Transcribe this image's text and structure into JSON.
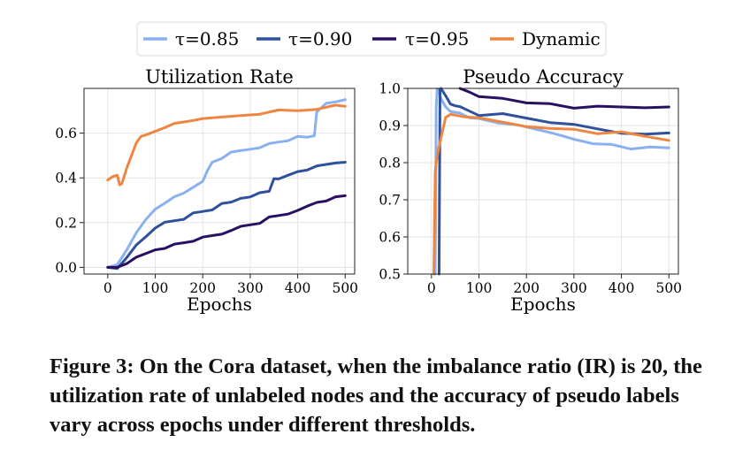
{
  "legend": {
    "entries": [
      {
        "label": "τ=0.85",
        "color": "#8AB0F0"
      },
      {
        "label": "τ=0.90",
        "color": "#30509C"
      },
      {
        "label": "τ=0.95",
        "color": "#2A0F63"
      },
      {
        "label": "Dynamic",
        "color": "#EE8642"
      }
    ]
  },
  "chart_data": [
    {
      "type": "line",
      "title": "Utilization Rate",
      "xlabel": "Epochs",
      "ylabel": "",
      "xlim": [
        -50,
        520
      ],
      "ylim": [
        -0.03,
        0.8
      ],
      "xticks": [
        0,
        100,
        200,
        300,
        400,
        500
      ],
      "yticks": [
        0.0,
        0.2,
        0.4,
        0.6
      ],
      "ytick_labels": [
        "0.0",
        "0.2",
        "0.4",
        "0.6"
      ],
      "grid": true,
      "series": [
        {
          "name": "τ=0.85",
          "color": "#8AB0F0",
          "x": [
            0,
            20,
            40,
            60,
            80,
            100,
            120,
            140,
            160,
            180,
            200,
            210,
            220,
            240,
            260,
            280,
            300,
            320,
            340,
            360,
            380,
            400,
            420,
            435,
            440,
            460,
            480,
            500
          ],
          "y": [
            0.0,
            0.01,
            0.08,
            0.16,
            0.21,
            0.26,
            0.29,
            0.31,
            0.33,
            0.36,
            0.39,
            0.43,
            0.47,
            0.49,
            0.51,
            0.52,
            0.53,
            0.54,
            0.55,
            0.56,
            0.57,
            0.58,
            0.58,
            0.59,
            0.7,
            0.73,
            0.74,
            0.75
          ]
        },
        {
          "name": "τ=0.90",
          "color": "#30509C",
          "x": [
            0,
            20,
            40,
            60,
            80,
            100,
            120,
            140,
            160,
            180,
            200,
            220,
            240,
            260,
            280,
            300,
            320,
            340,
            350,
            360,
            380,
            400,
            420,
            440,
            460,
            480,
            500
          ],
          "y": [
            0.0,
            0.0,
            0.04,
            0.1,
            0.14,
            0.17,
            0.2,
            0.21,
            0.22,
            0.24,
            0.25,
            0.26,
            0.28,
            0.29,
            0.31,
            0.32,
            0.33,
            0.34,
            0.4,
            0.39,
            0.41,
            0.43,
            0.44,
            0.45,
            0.46,
            0.47,
            0.47
          ]
        },
        {
          "name": "τ=0.95",
          "color": "#2A0F63",
          "x": [
            0,
            20,
            40,
            60,
            80,
            100,
            120,
            140,
            160,
            180,
            200,
            220,
            240,
            260,
            280,
            300,
            320,
            340,
            360,
            380,
            400,
            420,
            440,
            460,
            480,
            500
          ],
          "y": [
            0.0,
            0.0,
            0.02,
            0.04,
            0.06,
            0.08,
            0.09,
            0.1,
            0.11,
            0.12,
            0.13,
            0.14,
            0.15,
            0.17,
            0.18,
            0.19,
            0.2,
            0.22,
            0.23,
            0.24,
            0.26,
            0.27,
            0.29,
            0.3,
            0.31,
            0.32
          ]
        },
        {
          "name": "Dynamic",
          "color": "#EE8642",
          "x": [
            0,
            10,
            20,
            25,
            30,
            40,
            50,
            60,
            70,
            80,
            100,
            120,
            140,
            160,
            180,
            200,
            240,
            280,
            320,
            360,
            400,
            440,
            480,
            500
          ],
          "y": [
            0.39,
            0.4,
            0.41,
            0.37,
            0.38,
            0.44,
            0.5,
            0.56,
            0.58,
            0.59,
            0.61,
            0.63,
            0.64,
            0.65,
            0.66,
            0.66,
            0.67,
            0.68,
            0.69,
            0.7,
            0.7,
            0.71,
            0.72,
            0.72
          ]
        }
      ]
    },
    {
      "type": "line",
      "title": "Pseudo Accuracy",
      "xlabel": "Epochs",
      "ylabel": "",
      "xlim": [
        -50,
        520
      ],
      "ylim": [
        0.5,
        1.0
      ],
      "xticks": [
        0,
        100,
        200,
        300,
        400,
        500
      ],
      "yticks": [
        0.5,
        0.6,
        0.7,
        0.8,
        0.9,
        1.0
      ],
      "ytick_labels": [
        "0.5",
        "0.6",
        "0.7",
        "0.8",
        "0.9",
        "1.0"
      ],
      "grid": true,
      "series": [
        {
          "name": "τ=0.85",
          "color": "#8AB0F0",
          "x": [
            8,
            10,
            12,
            14,
            20,
            30,
            40,
            60,
            80,
            100,
            140,
            180,
            220,
            260,
            300,
            340,
            380,
            420,
            460,
            500
          ],
          "y": [
            0.5,
            0.95,
            1.0,
            1.0,
            0.97,
            0.95,
            0.94,
            0.93,
            0.92,
            0.92,
            0.91,
            0.9,
            0.89,
            0.88,
            0.86,
            0.85,
            0.85,
            0.84,
            0.84,
            0.84
          ]
        },
        {
          "name": "τ=0.90",
          "color": "#30509C",
          "x": [
            16,
            18,
            20,
            30,
            40,
            50,
            60,
            80,
            100,
            150,
            200,
            250,
            300,
            350,
            400,
            450,
            500
          ],
          "y": [
            0.5,
            1.0,
            1.0,
            0.98,
            0.96,
            0.95,
            0.95,
            0.94,
            0.93,
            0.93,
            0.92,
            0.91,
            0.9,
            0.89,
            0.88,
            0.88,
            0.88
          ]
        },
        {
          "name": "τ=0.95",
          "color": "#2A0F63",
          "x": [
            60,
            80,
            100,
            150,
            200,
            250,
            300,
            350,
            400,
            450,
            500
          ],
          "y": [
            1.0,
            0.99,
            0.98,
            0.97,
            0.96,
            0.96,
            0.95,
            0.95,
            0.95,
            0.95,
            0.95
          ]
        },
        {
          "name": "Dynamic",
          "color": "#EE8642",
          "x": [
            5,
            8,
            10,
            15,
            20,
            30,
            40,
            50,
            70,
            100,
            150,
            200,
            250,
            300,
            350,
            400,
            450,
            500
          ],
          "y": [
            0.5,
            0.77,
            0.8,
            0.84,
            0.87,
            0.92,
            0.93,
            0.93,
            0.92,
            0.92,
            0.91,
            0.9,
            0.89,
            0.89,
            0.88,
            0.88,
            0.87,
            0.86
          ]
        }
      ]
    }
  ],
  "caption": "Figure 3: On the Cora dataset, when the imbalance ratio (IR) is 20, the utilization rate of unlabeled nodes and the accuracy of pseudo labels vary across epochs under different thresholds."
}
